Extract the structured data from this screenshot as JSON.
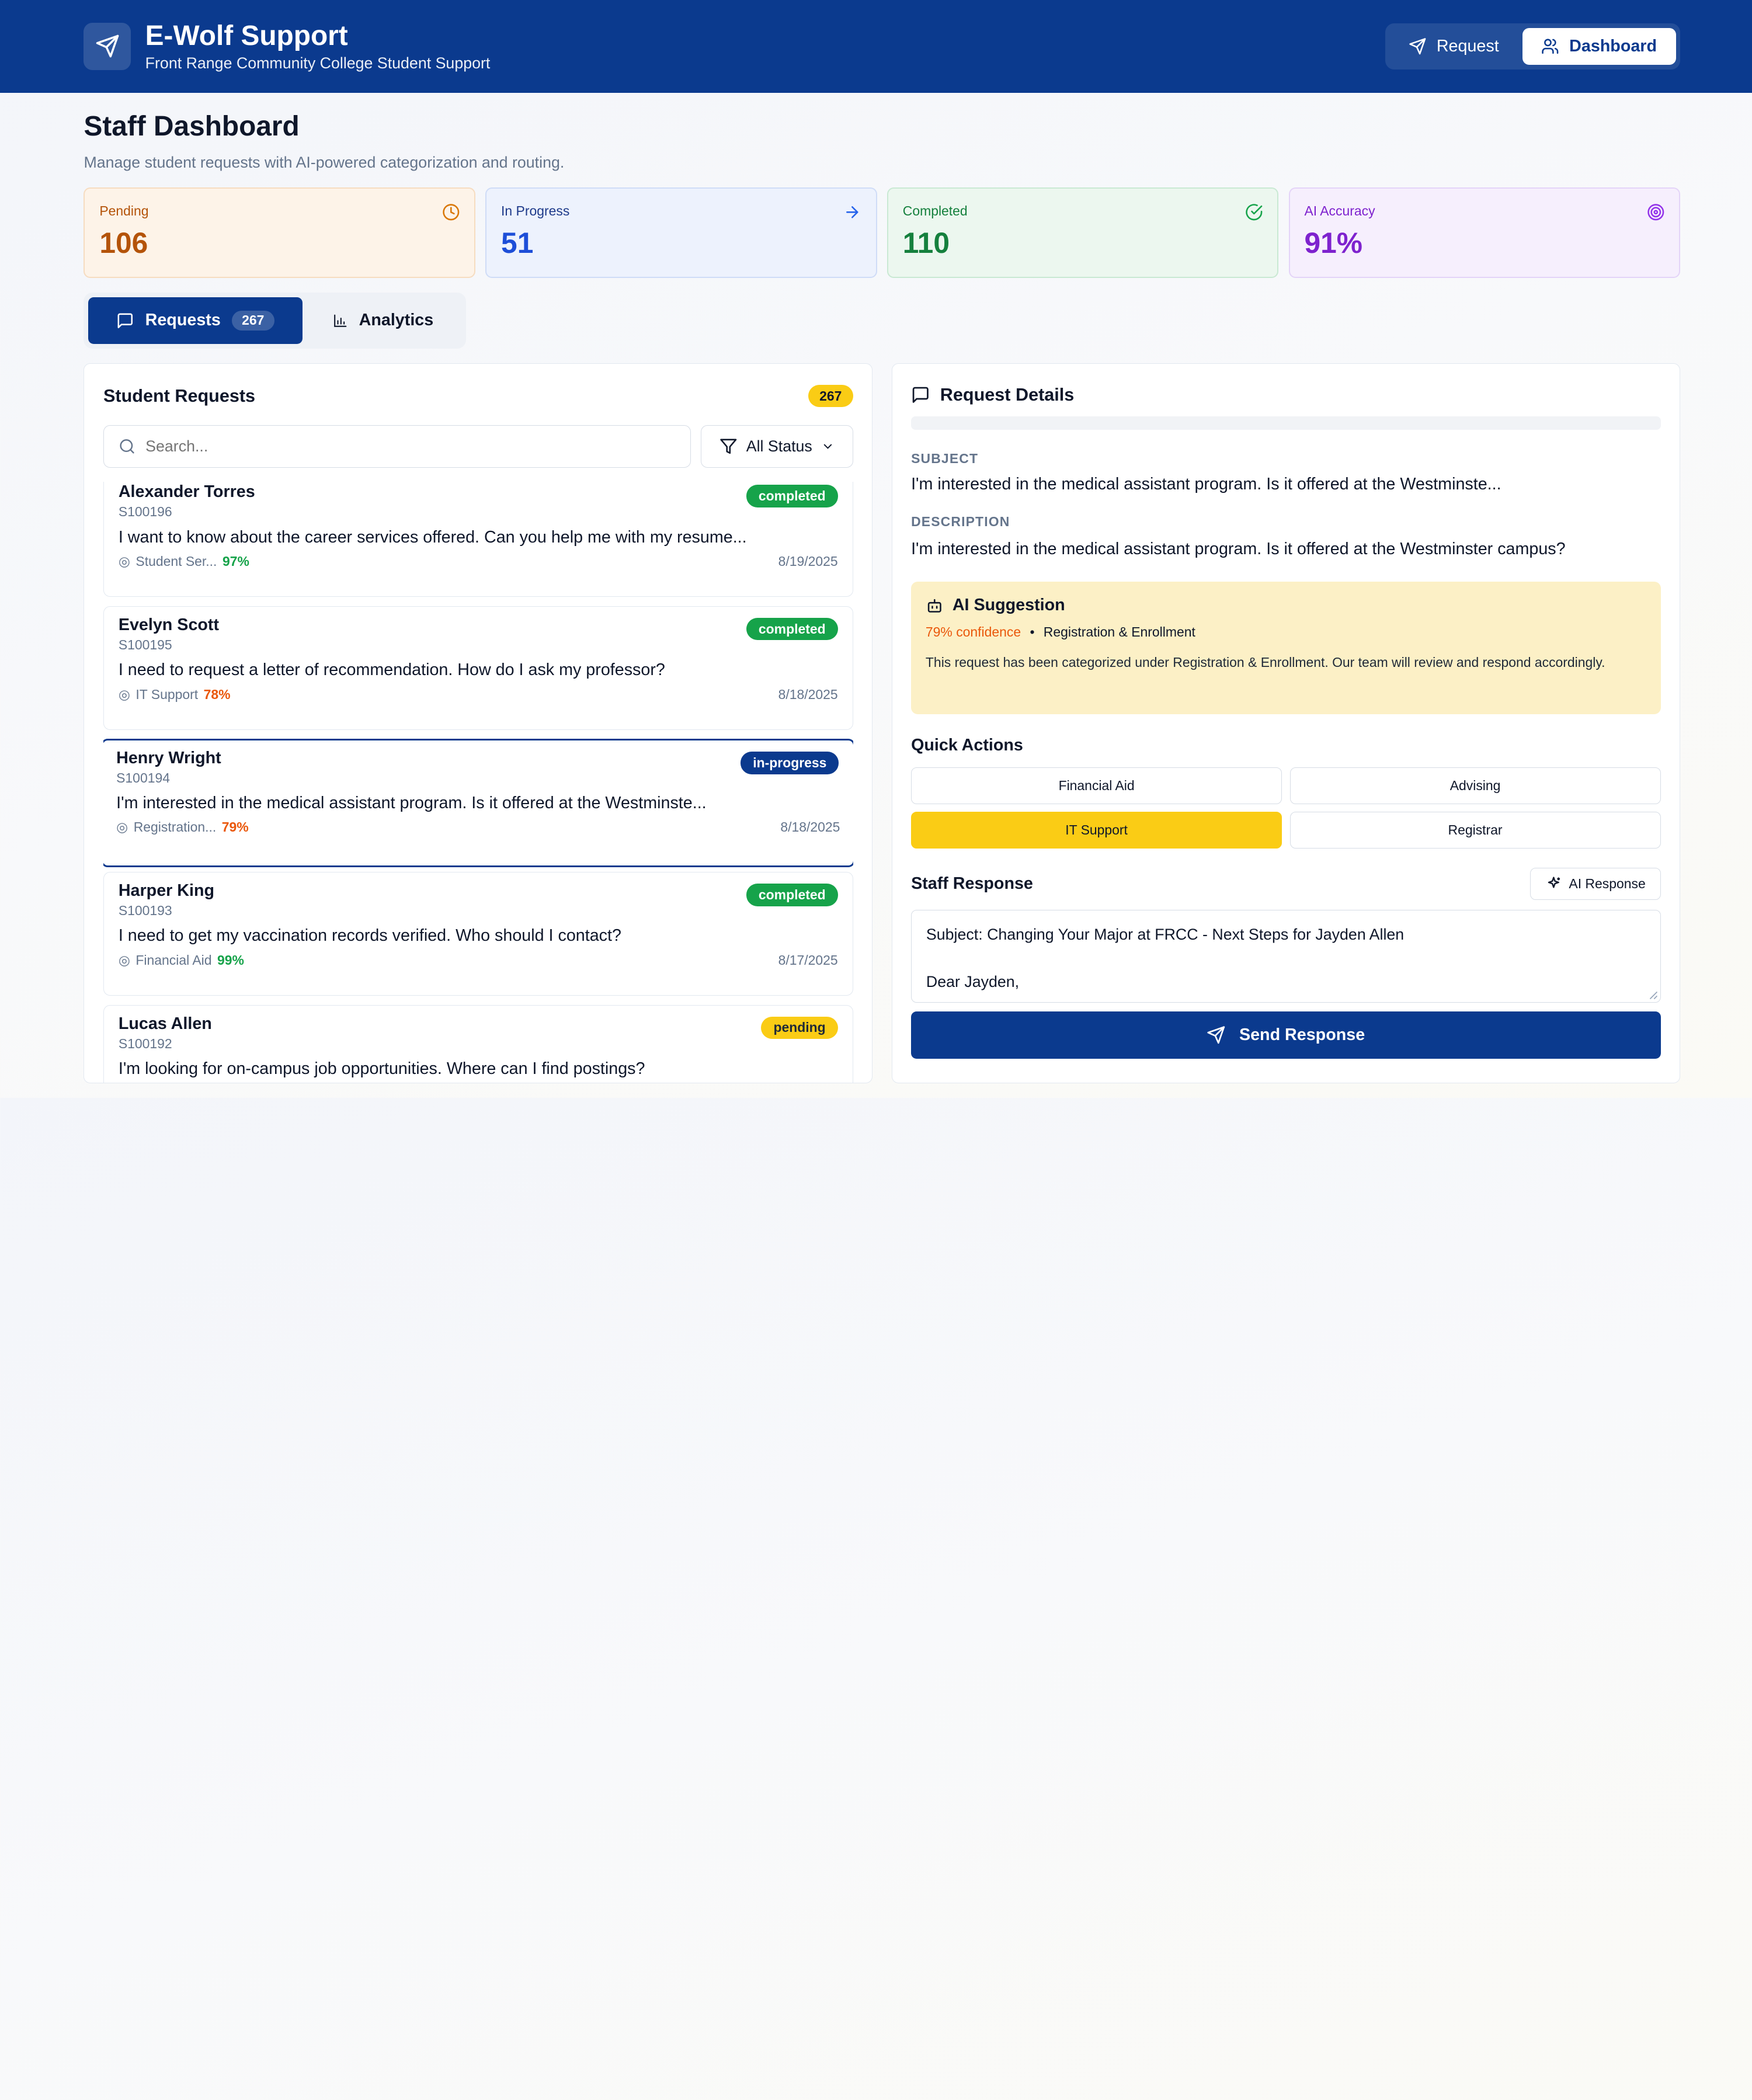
{
  "header": {
    "title": "E-Wolf Support",
    "subtitle": "Front Range Community College Student Support",
    "nav": {
      "request": "Request",
      "dashboard": "Dashboard"
    }
  },
  "page": {
    "title": "Staff Dashboard",
    "subtitle": "Manage student requests with AI-powered categorization and routing."
  },
  "stats": [
    {
      "label": "Pending",
      "value": "106"
    },
    {
      "label": "In Progress",
      "value": "51"
    },
    {
      "label": "Completed",
      "value": "110"
    },
    {
      "label": "AI Accuracy",
      "value": "91%"
    }
  ],
  "tabs": {
    "requests": "Requests",
    "requests_count": "267",
    "analytics": "Analytics"
  },
  "list": {
    "title": "Student Requests",
    "count": "267",
    "search_placeholder": "Search...",
    "filter": "All Status",
    "items": [
      {
        "name": "Alexander Torres",
        "id": "S100196",
        "status": "completed",
        "text": "I want to know about the career services offered. Can you help me with my resume...",
        "category": "Student Ser...",
        "confidence": "97%",
        "date": "8/19/2025"
      },
      {
        "name": "Evelyn Scott",
        "id": "S100195",
        "status": "completed",
        "text": "I need to request a letter of recommendation. How do I ask my professor?",
        "category": "IT Support",
        "confidence": "78%",
        "date": "8/18/2025"
      },
      {
        "name": "Henry Wright",
        "id": "S100194",
        "status": "in-progress",
        "text": "I'm interested in the medical assistant program. Is it offered at the Westminste...",
        "category": "Registration...",
        "confidence": "79%",
        "date": "8/18/2025"
      },
      {
        "name": "Harper King",
        "id": "S100193",
        "status": "completed",
        "text": "I need to get my vaccination records verified. Who should I contact?",
        "category": "Financial Aid",
        "confidence": "99%",
        "date": "8/17/2025"
      },
      {
        "name": "Lucas Allen",
        "id": "S100192",
        "status": "pending",
        "text": "I'm looking for on-campus job opportunities. Where can I find postings?",
        "category": "",
        "confidence": "",
        "date": ""
      }
    ]
  },
  "detail": {
    "title": "Request Details",
    "subject_label": "SUBJECT",
    "subject": "I'm interested in the medical assistant program. Is it offered at the Westminste...",
    "description_label": "DESCRIPTION",
    "description": "I'm interested in the medical assistant program. Is it offered at the Westminster campus?",
    "ai": {
      "title": "AI Suggestion",
      "confidence": "79% confidence",
      "category": "Registration & Enrollment",
      "text": "This request has been categorized under Registration & Enrollment. Our team will review and respond accordingly."
    },
    "quick_actions_title": "Quick Actions",
    "quick_actions": [
      "Financial Aid",
      "Advising",
      "IT Support",
      "Registrar"
    ],
    "response_title": "Staff Response",
    "ai_response_btn": "AI Response",
    "response_line1": "Subject: Changing Your Major at FRCC - Next Steps for Jayden Allen",
    "response_line2": "Dear Jayden,",
    "send": "Send Response"
  }
}
